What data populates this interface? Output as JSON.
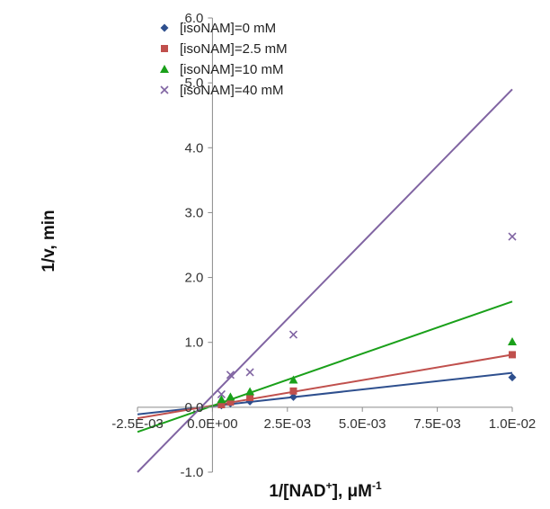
{
  "chart_data": {
    "type": "scatter",
    "title": "",
    "xlabel_main": "1/[NAD",
    "xlabel_sup1": "+",
    "xlabel_mid": "], μM",
    "xlabel_sup2": "-1",
    "ylabel": "1/v, min",
    "xlim": [
      -0.0025,
      0.01
    ],
    "ylim": [
      -1.0,
      6.0
    ],
    "x_ticks": [
      -0.0025,
      0.0,
      0.0025,
      0.005,
      0.0075,
      0.01
    ],
    "x_tick_labels": [
      "-2.5E-03",
      "0.0E+00",
      "2.5E-03",
      "5.0E-03",
      "7.5E-03",
      "1.0E-02"
    ],
    "y_ticks": [
      -1.0,
      0.0,
      1.0,
      2.0,
      3.0,
      4.0,
      5.0,
      6.0
    ],
    "y_tick_labels": [
      "-1.0",
      "0.0",
      "1.0",
      "2.0",
      "3.0",
      "4.0",
      "5.0",
      "6.0"
    ],
    "grid": false,
    "legend_position": "top-left",
    "series": [
      {
        "name": "[isoNAM]=0 mM",
        "color": "#2e4f8e",
        "marker": "diamond",
        "points": [
          [
            0.0003,
            0.03
          ],
          [
            0.0006,
            0.06
          ],
          [
            0.00125,
            0.09
          ],
          [
            0.0027,
            0.16
          ],
          [
            0.01,
            0.46
          ]
        ],
        "fit": [
          [
            -0.0025,
            -0.11
          ],
          [
            0.01,
            0.53
          ]
        ]
      },
      {
        "name": "[isoNAM]=2.5 mM",
        "color": "#c0504d",
        "marker": "square",
        "points": [
          [
            0.0003,
            0.04
          ],
          [
            0.0006,
            0.08
          ],
          [
            0.00125,
            0.15
          ],
          [
            0.0027,
            0.25
          ],
          [
            0.01,
            0.81
          ]
        ],
        "fit": [
          [
            -0.0025,
            -0.17
          ],
          [
            0.01,
            0.81
          ]
        ]
      },
      {
        "name": "[isoNAM]=10 mM",
        "color": "#1aa01a",
        "marker": "triangle",
        "points": [
          [
            0.0003,
            0.12
          ],
          [
            0.0006,
            0.16
          ],
          [
            0.00125,
            0.24
          ],
          [
            0.0027,
            0.42
          ],
          [
            0.01,
            1.01
          ]
        ],
        "fit": [
          [
            -0.0025,
            -0.38
          ],
          [
            0.01,
            1.63
          ]
        ]
      },
      {
        "name": "[isoNAM]=40 mM",
        "color": "#8064a2",
        "marker": "x",
        "points": [
          [
            0.0003,
            0.2
          ],
          [
            0.0006,
            0.5
          ],
          [
            0.00125,
            0.54
          ],
          [
            0.0027,
            1.12
          ],
          [
            0.01,
            2.63
          ]
        ],
        "fit": [
          [
            -0.0025,
            -1.0
          ],
          [
            0.01,
            4.9
          ]
        ]
      }
    ]
  }
}
